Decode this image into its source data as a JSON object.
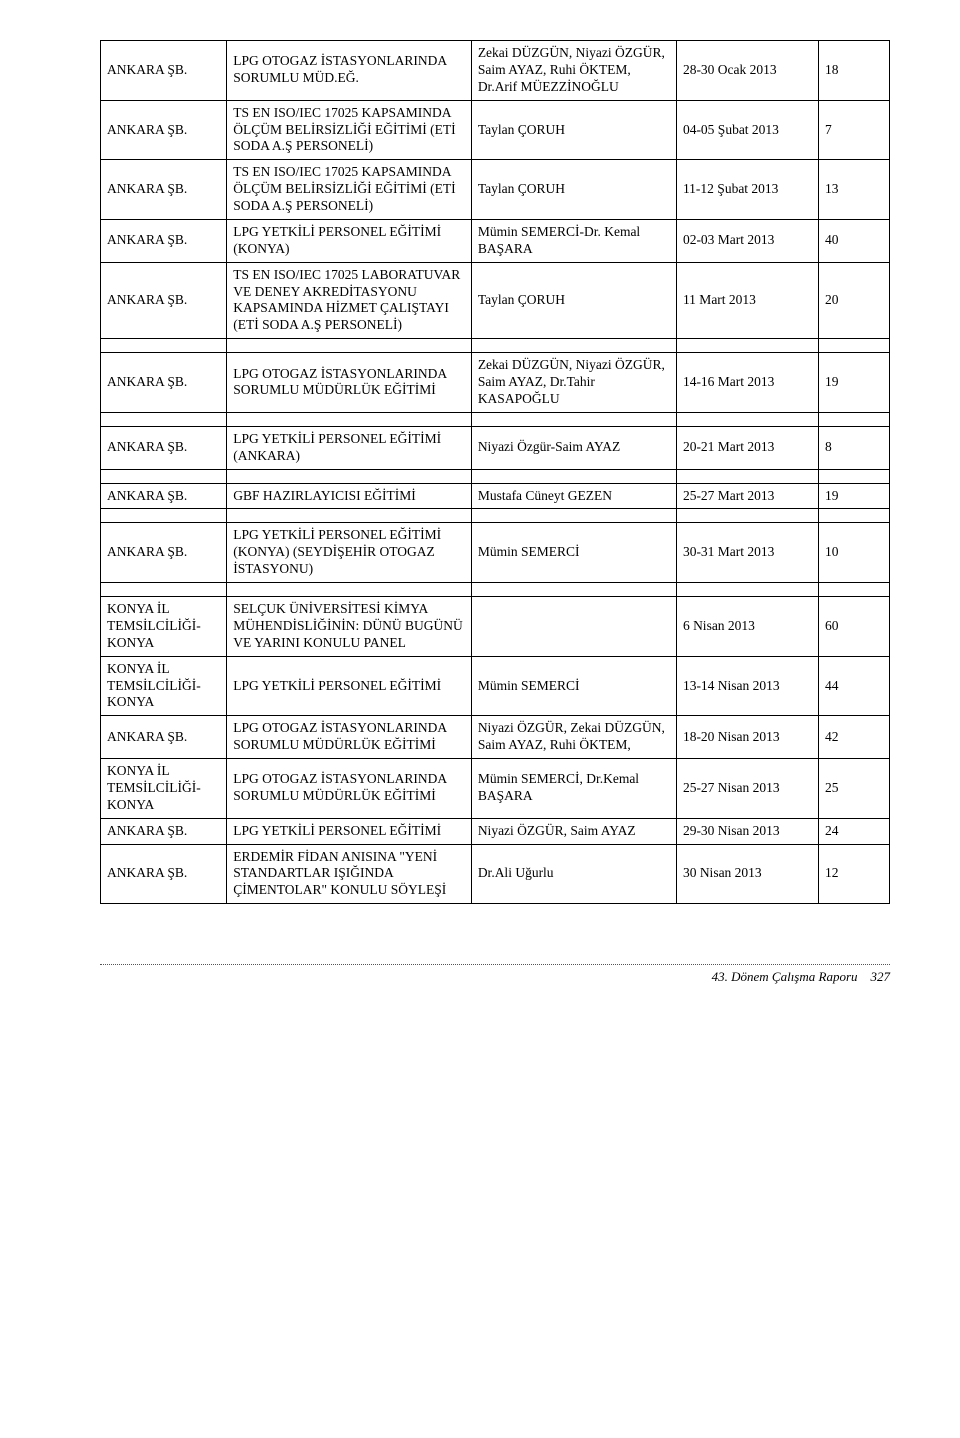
{
  "table": {
    "bg_color": "#ffffff",
    "text_color": "#000000",
    "border_color": "#000000",
    "font_family": "Times New Roman",
    "font_size": 13.5,
    "col_widths_pct": [
      16,
      31,
      26,
      18,
      9
    ],
    "rows": [
      {
        "c1": "ANKARA ŞB.",
        "c2": "LPG OTOGAZ İSTASYONLARINDA SORUMLU MÜD.EĞ.",
        "c3": "Zekai DÜZGÜN, Niyazi ÖZGÜR, Saim AYAZ, Ruhi ÖKTEM, Dr.Arif MÜEZZİNOĞLU",
        "c4": "28-30 Ocak 2013",
        "c5": "18"
      },
      {
        "c1": "ANKARA ŞB.",
        "c2": "TS EN ISO/IEC 17025 KAPSAMINDA ÖLÇÜM BELİRSİZLİĞİ EĞİTİMİ (ETİ SODA A.Ş PERSONELİ)",
        "c3": "Taylan ÇORUH",
        "c4": "04-05 Şubat 2013",
        "c5": "7"
      },
      {
        "c1": "ANKARA ŞB.",
        "c2": "TS EN ISO/IEC 17025 KAPSAMINDA ÖLÇÜM BELİRSİZLİĞİ EĞİTİMİ (ETİ SODA A.Ş PERSONELİ)",
        "c3": "Taylan ÇORUH",
        "c4": "11-12 Şubat 2013",
        "c5": "13"
      },
      {
        "c1": "ANKARA ŞB.",
        "c2": "LPG YETKİLİ PERSONEL EĞİTİMİ (KONYA)",
        "c3": "Mümin SEMERCİ-Dr. Kemal BAŞARA",
        "c4": "02-03 Mart 2013",
        "c5": "40"
      },
      {
        "c1": "ANKARA ŞB.",
        "c2": "TS EN ISO/IEC 17025 LABORATUVAR VE DENEY AKREDİTASYONU KAPSAMINDA HİZMET ÇALIŞTAYI (ETİ SODA A.Ş PERSONELİ)",
        "c3": "Taylan ÇORUH",
        "c4": "11  Mart 2013",
        "c5": "20"
      },
      {
        "spacer": true
      },
      {
        "c1": "ANKARA ŞB.",
        "c2": "LPG OTOGAZ İSTASYONLARINDA SORUMLU MÜDÜRLÜK EĞİTİMİ",
        "c3": "Zekai DÜZGÜN, Niyazi ÖZGÜR, Saim AYAZ, Dr.Tahir KASAPOĞLU",
        "c4": "14-16 Mart 2013",
        "c5": "19"
      },
      {
        "spacer": true
      },
      {
        "c1": "ANKARA ŞB.",
        "c2": "LPG YETKİLİ PERSONEL EĞİTİMİ (ANKARA)",
        "c3": "Niyazi Özgür-Saim AYAZ",
        "c4": "20-21 Mart 2013",
        "c5": "8"
      },
      {
        "spacer": true
      },
      {
        "c1": "ANKARA ŞB.",
        "c2": "GBF HAZIRLAYICISI EĞİTİMİ",
        "c3": "Mustafa Cüneyt GEZEN",
        "c4": "25-27 Mart 2013",
        "c5": "19"
      },
      {
        "spacer": true
      },
      {
        "c1": "ANKARA ŞB.",
        "c2": "LPG YETKİLİ PERSONEL EĞİTİMİ (KONYA) (SEYDİŞEHİR OTOGAZ İSTASYONU)",
        "c3": "Mümin SEMERCİ",
        "c4": "30-31 Mart 2013",
        "c5": "10"
      },
      {
        "spacer": true
      },
      {
        "c1": "KONYA İL TEMSİLCİLİĞİ-KONYA",
        "c2": "SELÇUK ÜNİVERSİTESİ KİMYA MÜHENDİSLİĞİNİN: DÜNÜ BUGÜNÜ VE YARINI KONULU PANEL",
        "c3": "",
        "c4": "6 Nisan 2013",
        "c5": "60"
      },
      {
        "c1": "KONYA İL TEMSİLCİLİĞİ-KONYA",
        "c2": "LPG YETKİLİ PERSONEL EĞİTİMİ",
        "c3": "Mümin SEMERCİ",
        "c4": "13-14 Nisan 2013",
        "c5": "44"
      },
      {
        "c1": "ANKARA ŞB.",
        "c2": "LPG OTOGAZ İSTASYONLARINDA SORUMLU MÜDÜRLÜK EĞİTİMİ",
        "c3": "Niyazi ÖZGÜR, Zekai DÜZGÜN, Saim AYAZ, Ruhi ÖKTEM,",
        "c4": "18-20 Nisan 2013",
        "c5": "42"
      },
      {
        "c1": "KONYA İL TEMSİLCİLİĞİ-KONYA",
        "c2": "LPG OTOGAZ İSTASYONLARINDA SORUMLU MÜDÜRLÜK EĞİTİMİ",
        "c3": "Mümin SEMERCİ, Dr.Kemal BAŞARA",
        "c4": "25-27 Nisan 2013",
        "c5": "25"
      },
      {
        "c1": "ANKARA ŞB.",
        "c2": "LPG YETKİLİ PERSONEL EĞİTİMİ",
        "c3": "Niyazi ÖZGÜR, Saim AYAZ",
        "c4": "29-30 Nisan 2013",
        "c5": "24"
      },
      {
        "c1": "ANKARA ŞB.",
        "c2": "ERDEMİR FİDAN ANISINA \"YENİ STANDARTLAR IŞIĞINDA ÇİMENTOLAR\" KONULU SÖYLEŞİ",
        "c3": "Dr.Ali Uğurlu",
        "c4": "30 Nisan 2013",
        "c5": "12"
      }
    ]
  },
  "footer": {
    "text": "43. Dönem Çalışma Raporu",
    "page": "327",
    "font_size": 13,
    "separator_color": "#555555"
  }
}
